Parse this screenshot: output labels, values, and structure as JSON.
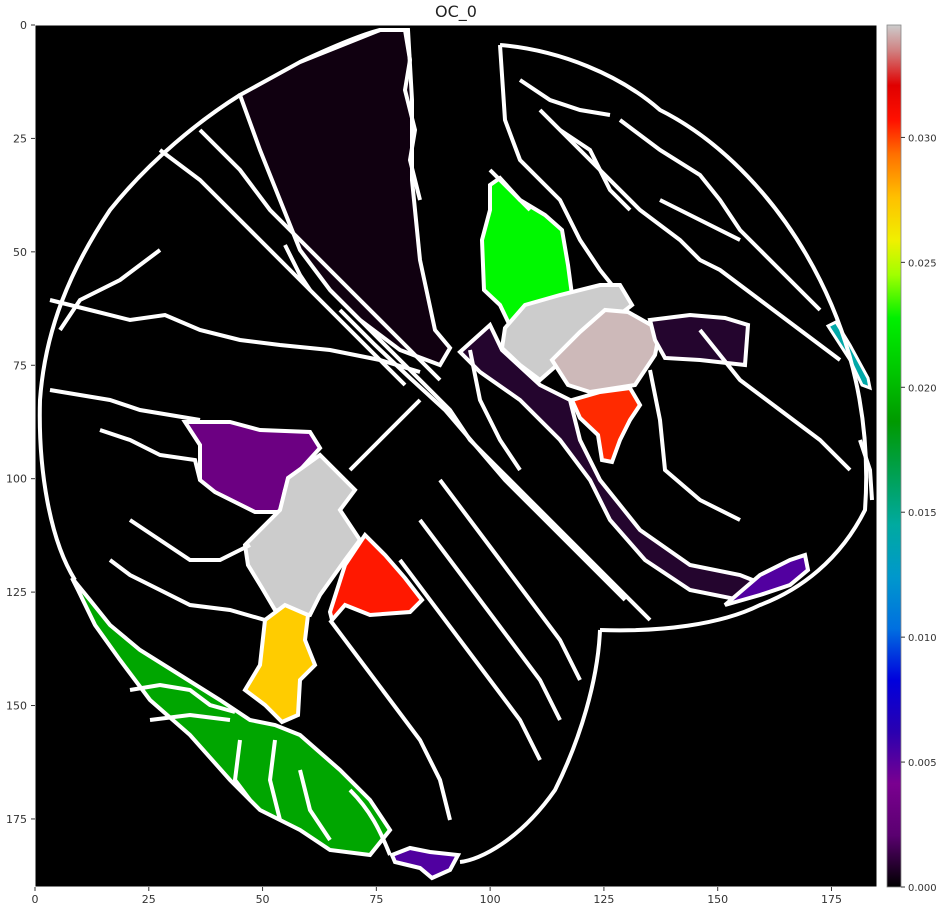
{
  "title": "OC_0",
  "chart_data": {
    "type": "heatmap",
    "title": "OC_0",
    "xlabel": "",
    "ylabel": "",
    "colormap": "nipy_spectral",
    "xlim": [
      0,
      185
    ],
    "ylim": [
      190,
      0
    ],
    "x_ticks": [
      0,
      25,
      50,
      75,
      100,
      125,
      150,
      175
    ],
    "y_ticks": [
      0,
      25,
      50,
      75,
      100,
      125,
      150,
      175
    ],
    "colorbar": {
      "range": [
        0.0,
        0.0345
      ],
      "ticks": [
        "0.000",
        "0.005",
        "0.010",
        "0.015",
        "0.020",
        "0.025",
        "0.030"
      ]
    },
    "background_color": "#000000",
    "outline_color": "#ffffff",
    "regions": [
      {
        "label": "top-center wedge",
        "value": 0.0005,
        "color": "#100010"
      },
      {
        "label": "bright green upper region",
        "value": 0.0205,
        "color": "#00f800"
      },
      {
        "label": "grey diagonal band upper",
        "value": 0.0345,
        "color": "#cccccc"
      },
      {
        "label": "pinkish grey upper",
        "value": 0.034,
        "color": "#cdb9b9"
      },
      {
        "label": "dark purple diagonal strip",
        "value": 0.0008,
        "color": "#24052e"
      },
      {
        "label": "red-orange small upper",
        "value": 0.0312,
        "color": "#ff2a00"
      },
      {
        "label": "cyan small right",
        "value": 0.012,
        "color": "#00a8a8"
      },
      {
        "label": "purple left",
        "value": 0.0035,
        "color": "#6c0082"
      },
      {
        "label": "grey center",
        "value": 0.0345,
        "color": "#cccccc"
      },
      {
        "label": "red center",
        "value": 0.0318,
        "color": "#ff1800"
      },
      {
        "label": "yellow small",
        "value": 0.0262,
        "color": "#ffcc00"
      },
      {
        "label": "green lower left",
        "value": 0.0172,
        "color": "#00a600"
      },
      {
        "label": "violet lower right",
        "value": 0.004,
        "color": "#5200a0"
      },
      {
        "label": "violet bottom",
        "value": 0.004,
        "color": "#5000a0"
      }
    ]
  }
}
